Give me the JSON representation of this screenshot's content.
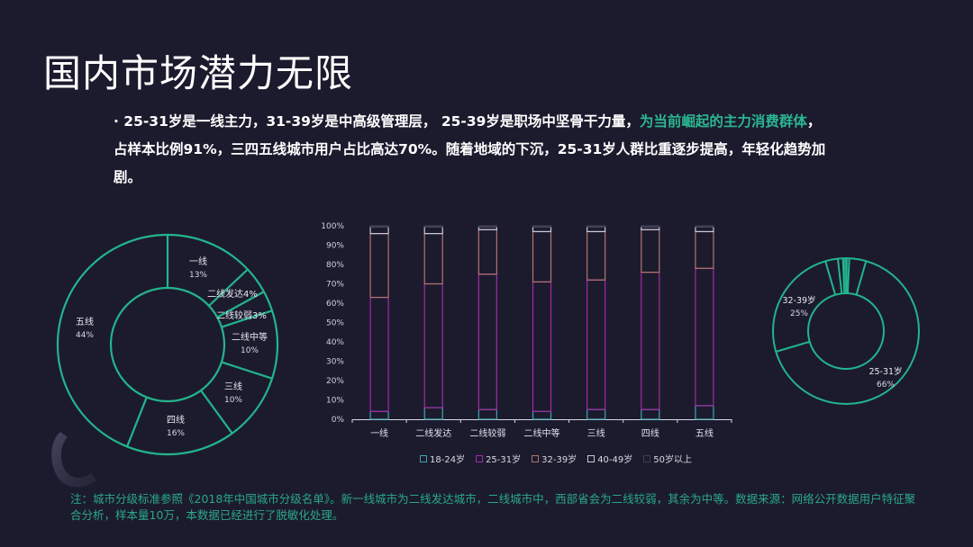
{
  "slide": {
    "title": "国内市场潜力无限",
    "summary_parts": {
      "p1": "· 25-31岁是一线主力，31-39岁是中高级管理层，  25-39岁是职场中坚骨干力量，",
      "p2_highlight": "为当前崛起的主力消费群体",
      "p3": "，占样本比例91%，三四五线城市用户占比高达70%。随着地域的下沉，25-31岁人群比重逐步提高，年轻化趋势加剧。"
    },
    "note": "注：城市分级标准参照《2018年中国城市分级名单》。新一线城市为二线发达城市，二线城市中，西部省会为二线较弱，其余为中等。数据来源：网络公开数据用户特征聚合分析，样本量10万，本数据已经进行了脱敏化处理。",
    "colors": {
      "background": "#1c1b2e",
      "accent_green": "#2bb791",
      "donut_stroke": "#23b48c",
      "seg_18_24": "#3fa3ad",
      "seg_25_31": "#a12ba4",
      "seg_32_39": "#b0756e",
      "seg_40_49": "#c8c8d8",
      "seg_50_plus": "#3e3d52"
    }
  },
  "chart_data": [
    {
      "type": "pie",
      "subtype": "donut",
      "title": "",
      "categories": [
        "一线",
        "二线发达",
        "二线较弱",
        "二线中等",
        "三线",
        "四线",
        "五线"
      ],
      "values": [
        13,
        4,
        3,
        10,
        10,
        16,
        44
      ],
      "labels": [
        "一线 13%",
        "二线发达4%",
        "二线较弱3%",
        "二线中等 10%",
        "三线 10%",
        "四线 16%",
        "五线 44%"
      ],
      "legend": "none"
    },
    {
      "type": "bar",
      "subtype": "stacked-100",
      "title": "",
      "categories": [
        "一线",
        "二线发达",
        "二线较弱",
        "二线中等",
        "三线",
        "四线",
        "五线"
      ],
      "yticks": [
        "0%",
        "10%",
        "20%",
        "30%",
        "40%",
        "50%",
        "60%",
        "70%",
        "80%",
        "90%",
        "100%"
      ],
      "ylim": [
        0,
        100
      ],
      "grid": false,
      "legend_position": "bottom",
      "series": [
        {
          "name": "18-24岁",
          "values": [
            4,
            6,
            5,
            4,
            5,
            5,
            7
          ]
        },
        {
          "name": "25-31岁",
          "values": [
            59,
            64,
            70,
            67,
            67,
            71,
            71
          ]
        },
        {
          "name": "32-39岁",
          "values": [
            33,
            26,
            23,
            26,
            25,
            22,
            19
          ]
        },
        {
          "name": "40-49岁",
          "values": [
            3.5,
            3.5,
            1.5,
            2.5,
            2.5,
            1.5,
            2.5
          ]
        },
        {
          "name": "50岁以上",
          "values": [
            0.5,
            0.5,
            0.5,
            0.5,
            0.5,
            0.5,
            0.5
          ]
        }
      ]
    },
    {
      "type": "pie",
      "subtype": "donut",
      "title": "",
      "categories": [
        "18-24岁",
        "25-31岁",
        "32-39岁",
        "40-49岁",
        "50岁以上"
      ],
      "values": [
        5,
        66,
        25,
        3,
        1
      ],
      "labels": [
        "25-31岁 66%",
        "32-39岁 25%"
      ],
      "legend": "none"
    }
  ],
  "legend": [
    {
      "label": "18-24岁",
      "color": "#3fa3ad"
    },
    {
      "label": "25-31岁",
      "color": "#a12ba4"
    },
    {
      "label": "32-39岁",
      "color": "#b0756e"
    },
    {
      "label": "40-49岁",
      "color": "#c8c8d8"
    },
    {
      "label": "50岁以上",
      "color": "#3e3d52"
    }
  ]
}
